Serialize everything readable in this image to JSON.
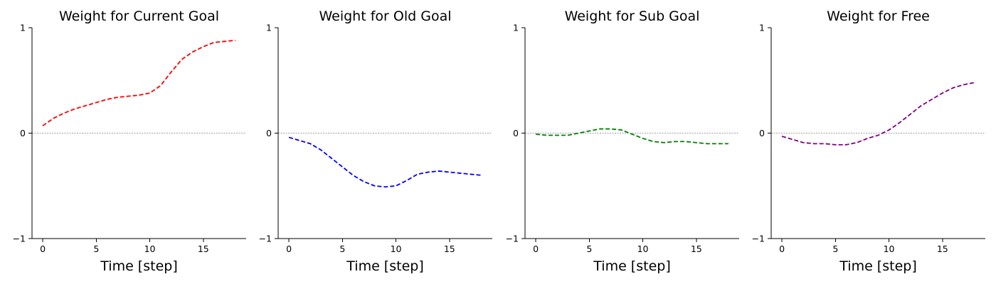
{
  "chart_data": [
    {
      "type": "line",
      "title": "Weight for Current Goal",
      "xlabel": "Time [step]",
      "ylabel": "",
      "xlim": [
        -1,
        19
      ],
      "ylim": [
        -1,
        1
      ],
      "xticks": [
        0,
        5,
        10,
        15
      ],
      "yticks": [
        -1,
        0,
        1
      ],
      "zero_line": true,
      "series": [
        {
          "color": "#ff0000",
          "x": [
            0,
            1,
            2,
            3,
            4,
            5,
            6,
            7,
            8,
            9,
            10,
            11,
            12,
            13,
            14,
            15,
            16,
            17,
            18
          ],
          "y": [
            0.07,
            0.14,
            0.19,
            0.23,
            0.26,
            0.29,
            0.32,
            0.34,
            0.35,
            0.36,
            0.38,
            0.45,
            0.58,
            0.7,
            0.77,
            0.82,
            0.86,
            0.87,
            0.88
          ]
        }
      ]
    },
    {
      "type": "line",
      "title": "Weight for Old Goal",
      "xlabel": "Time [step]",
      "ylabel": "",
      "xlim": [
        -1,
        19
      ],
      "ylim": [
        -1,
        1
      ],
      "xticks": [
        0,
        5,
        10,
        15
      ],
      "yticks": [
        -1,
        0,
        1
      ],
      "zero_line": true,
      "series": [
        {
          "color": "#0000ff",
          "x": [
            0,
            1,
            2,
            3,
            4,
            5,
            6,
            7,
            8,
            9,
            10,
            11,
            12,
            13,
            14,
            15,
            16,
            17,
            18
          ],
          "y": [
            -0.04,
            -0.07,
            -0.1,
            -0.16,
            -0.24,
            -0.32,
            -0.4,
            -0.46,
            -0.5,
            -0.51,
            -0.5,
            -0.45,
            -0.39,
            -0.37,
            -0.36,
            -0.37,
            -0.38,
            -0.39,
            -0.4
          ]
        }
      ]
    },
    {
      "type": "line",
      "title": "Weight for Sub Goal",
      "xlabel": "Time [step]",
      "ylabel": "",
      "xlim": [
        -1,
        19
      ],
      "ylim": [
        -1,
        1
      ],
      "xticks": [
        0,
        5,
        10,
        15
      ],
      "yticks": [
        -1,
        0,
        1
      ],
      "zero_line": true,
      "series": [
        {
          "color": "#008000",
          "x": [
            0,
            1,
            2,
            3,
            4,
            5,
            6,
            7,
            8,
            9,
            10,
            11,
            12,
            13,
            14,
            15,
            16,
            17,
            18
          ],
          "y": [
            -0.01,
            -0.02,
            -0.02,
            -0.02,
            0.0,
            0.02,
            0.04,
            0.04,
            0.03,
            -0.01,
            -0.05,
            -0.08,
            -0.09,
            -0.08,
            -0.08,
            -0.09,
            -0.1,
            -0.1,
            -0.1
          ]
        }
      ]
    },
    {
      "type": "line",
      "title": "Weight for Free",
      "xlabel": "Time [step]",
      "ylabel": "",
      "xlim": [
        -1,
        19
      ],
      "ylim": [
        -1,
        1
      ],
      "xticks": [
        0,
        5,
        10,
        15
      ],
      "yticks": [
        -1,
        0,
        1
      ],
      "zero_line": true,
      "series": [
        {
          "color": "#800080",
          "x": [
            0,
            1,
            2,
            3,
            4,
            5,
            6,
            7,
            8,
            9,
            10,
            11,
            12,
            13,
            14,
            15,
            16,
            17,
            18
          ],
          "y": [
            -0.03,
            -0.06,
            -0.09,
            -0.1,
            -0.1,
            -0.11,
            -0.11,
            -0.09,
            -0.05,
            -0.02,
            0.03,
            0.1,
            0.18,
            0.26,
            0.32,
            0.38,
            0.43,
            0.46,
            0.48
          ]
        }
      ]
    }
  ]
}
